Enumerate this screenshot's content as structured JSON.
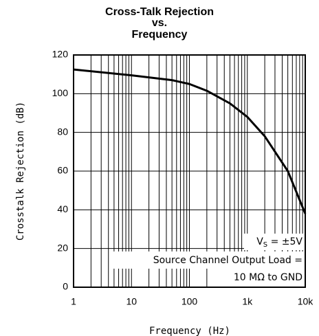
{
  "chart_data": {
    "type": "line",
    "title": [
      "Cross-Talk Rejection",
      "vs.",
      "Frequency"
    ],
    "xlabel": "Frequency (Hz)",
    "ylabel": "Crosstalk Rejection (dB)",
    "x": [
      1,
      10,
      50,
      100,
      200,
      500,
      1000,
      2000,
      5000,
      10000
    ],
    "series": [
      {
        "name": "Crosstalk Rejection",
        "color": "#000000",
        "values": [
          112.5,
          109.5,
          107,
          105,
          101.5,
          95,
          88,
          78,
          60,
          38
        ]
      }
    ],
    "xlog": true,
    "xlim": [
      1,
      10000
    ],
    "xticks": [
      1,
      10,
      100,
      {
        "value": 1000,
        "label": "1k"
      },
      {
        "value": 10000,
        "label": "10k"
      }
    ],
    "xminorticks": [
      2,
      3,
      4,
      5,
      6,
      7,
      8,
      9,
      20,
      30,
      40,
      50,
      60,
      70,
      80,
      90,
      200,
      300,
      400,
      500,
      600,
      700,
      800,
      900,
      2000,
      3000,
      4000,
      5000,
      6000,
      7000,
      8000,
      9000
    ],
    "ylim": [
      0,
      120
    ],
    "yticks": [
      0,
      20,
      40,
      60,
      80,
      100,
      120
    ],
    "grid": true,
    "annotations": {
      "vs": {
        "main": "V",
        "sub": "S",
        "rest": " = ±5V"
      },
      "load1": "Source Channel Output Load =",
      "load2": "10 MΩ to GND"
    }
  }
}
